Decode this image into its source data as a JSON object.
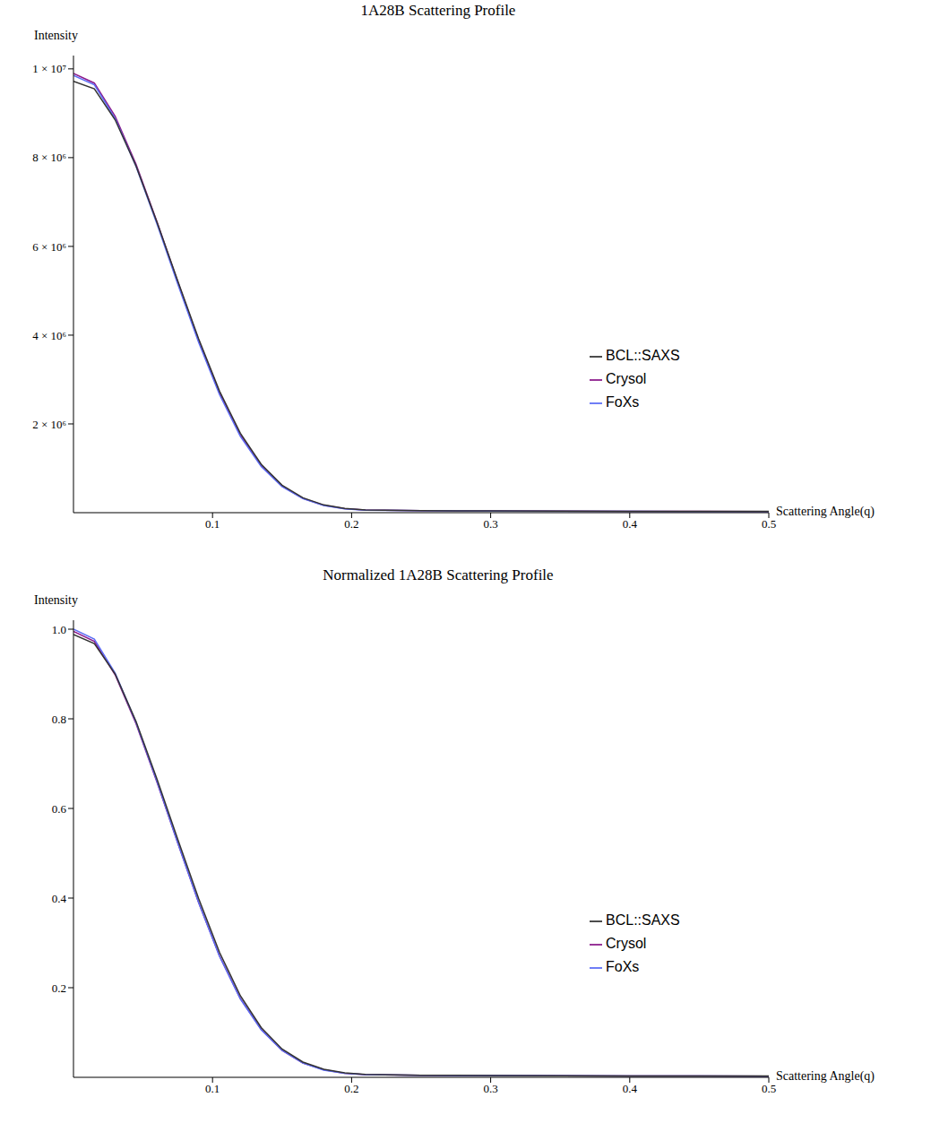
{
  "chart_data": [
    {
      "type": "line",
      "title": "1A28B Scattering Profile",
      "x_label": "Scattering Angle(q)",
      "y_label": "Intensity",
      "x": [
        0,
        0.015,
        0.03,
        0.045,
        0.06,
        0.075,
        0.09,
        0.105,
        0.12,
        0.135,
        0.15,
        0.165,
        0.18,
        0.195,
        0.21,
        0.25,
        0.3,
        0.35,
        0.4,
        0.45,
        0.5
      ],
      "xlim": [
        0,
        0.5
      ],
      "xticks": [
        0.1,
        0.2,
        0.3,
        0.4,
        0.5
      ],
      "ylim": [
        0,
        10300000
      ],
      "yticks": [
        {
          "value": 2000000,
          "label": "2 × 10⁶"
        },
        {
          "value": 4000000,
          "label": "4 × 10⁶"
        },
        {
          "value": 6000000,
          "label": "6 × 10⁶"
        },
        {
          "value": 8000000,
          "label": "8 × 10⁶"
        },
        {
          "value": 10000000,
          "label": "1 × 10⁷"
        }
      ],
      "grid": false,
      "legend": "right",
      "series": [
        {
          "name": "Crysol",
          "color": "#8b1a8b",
          "values": [
            9900000,
            9680000,
            8930000,
            7850000,
            6560000,
            5200000,
            3880000,
            2700000,
            1750000,
            1060000,
            600000,
            320000,
            165000,
            90000,
            60000,
            45000,
            38000,
            33000,
            30000,
            28000,
            27000
          ]
        },
        {
          "name": "FoXs",
          "color": "#5b6cf5",
          "values": [
            9850000,
            9640000,
            8880000,
            7800000,
            6510000,
            5150000,
            3840000,
            2660000,
            1720000,
            1040000,
            590000,
            315000,
            160000,
            88000,
            58000,
            44000,
            37000,
            32000,
            29000,
            27000,
            26000
          ]
        },
        {
          "name": "BCL::SAXS",
          "color": "#333333",
          "values": [
            9720000,
            9550000,
            8850000,
            7810000,
            6550000,
            5220000,
            3920000,
            2740000,
            1790000,
            1090000,
            620000,
            335000,
            175000,
            95000,
            62000,
            46000,
            39000,
            34000,
            31000,
            29000,
            28000
          ]
        }
      ]
    },
    {
      "type": "line",
      "title": "Normalized 1A28B Scattering Profile",
      "x_label": "Scattering Angle(q)",
      "y_label": "Intensity",
      "x": [
        0,
        0.015,
        0.03,
        0.045,
        0.06,
        0.075,
        0.09,
        0.105,
        0.12,
        0.135,
        0.15,
        0.165,
        0.18,
        0.195,
        0.21,
        0.25,
        0.3,
        0.35,
        0.4,
        0.45,
        0.5
      ],
      "xlim": [
        0,
        0.5
      ],
      "xticks": [
        0.1,
        0.2,
        0.3,
        0.4,
        0.5
      ],
      "ylim": [
        0,
        1.02
      ],
      "yticks": [
        0.2,
        0.4,
        0.6,
        0.8,
        {
          "value": 1,
          "label": "1.0"
        }
      ],
      "grid": false,
      "legend": "right",
      "series": [
        {
          "name": "Crysol",
          "color": "#8b1a8b",
          "values": [
            0.995,
            0.973,
            0.898,
            0.789,
            0.659,
            0.523,
            0.39,
            0.271,
            0.176,
            0.107,
            0.06,
            0.032,
            0.017,
            0.009,
            0.006,
            0.0045,
            0.0038,
            0.0033,
            0.003,
            0.0028,
            0.0027
          ]
        },
        {
          "name": "FoXs",
          "color": "#5b6cf5",
          "values": [
            1.0,
            0.978,
            0.902,
            0.792,
            0.661,
            0.523,
            0.39,
            0.27,
            0.175,
            0.106,
            0.06,
            0.032,
            0.016,
            0.009,
            0.006,
            0.0045,
            0.0038,
            0.0033,
            0.003,
            0.0028,
            0.0027
          ]
        },
        {
          "name": "BCL::SAXS",
          "color": "#333333",
          "values": [
            0.988,
            0.968,
            0.9,
            0.794,
            0.666,
            0.531,
            0.399,
            0.279,
            0.182,
            0.111,
            0.063,
            0.034,
            0.018,
            0.01,
            0.0063,
            0.0047,
            0.004,
            0.0034,
            0.0031,
            0.0029,
            0.0028
          ]
        }
      ]
    }
  ]
}
